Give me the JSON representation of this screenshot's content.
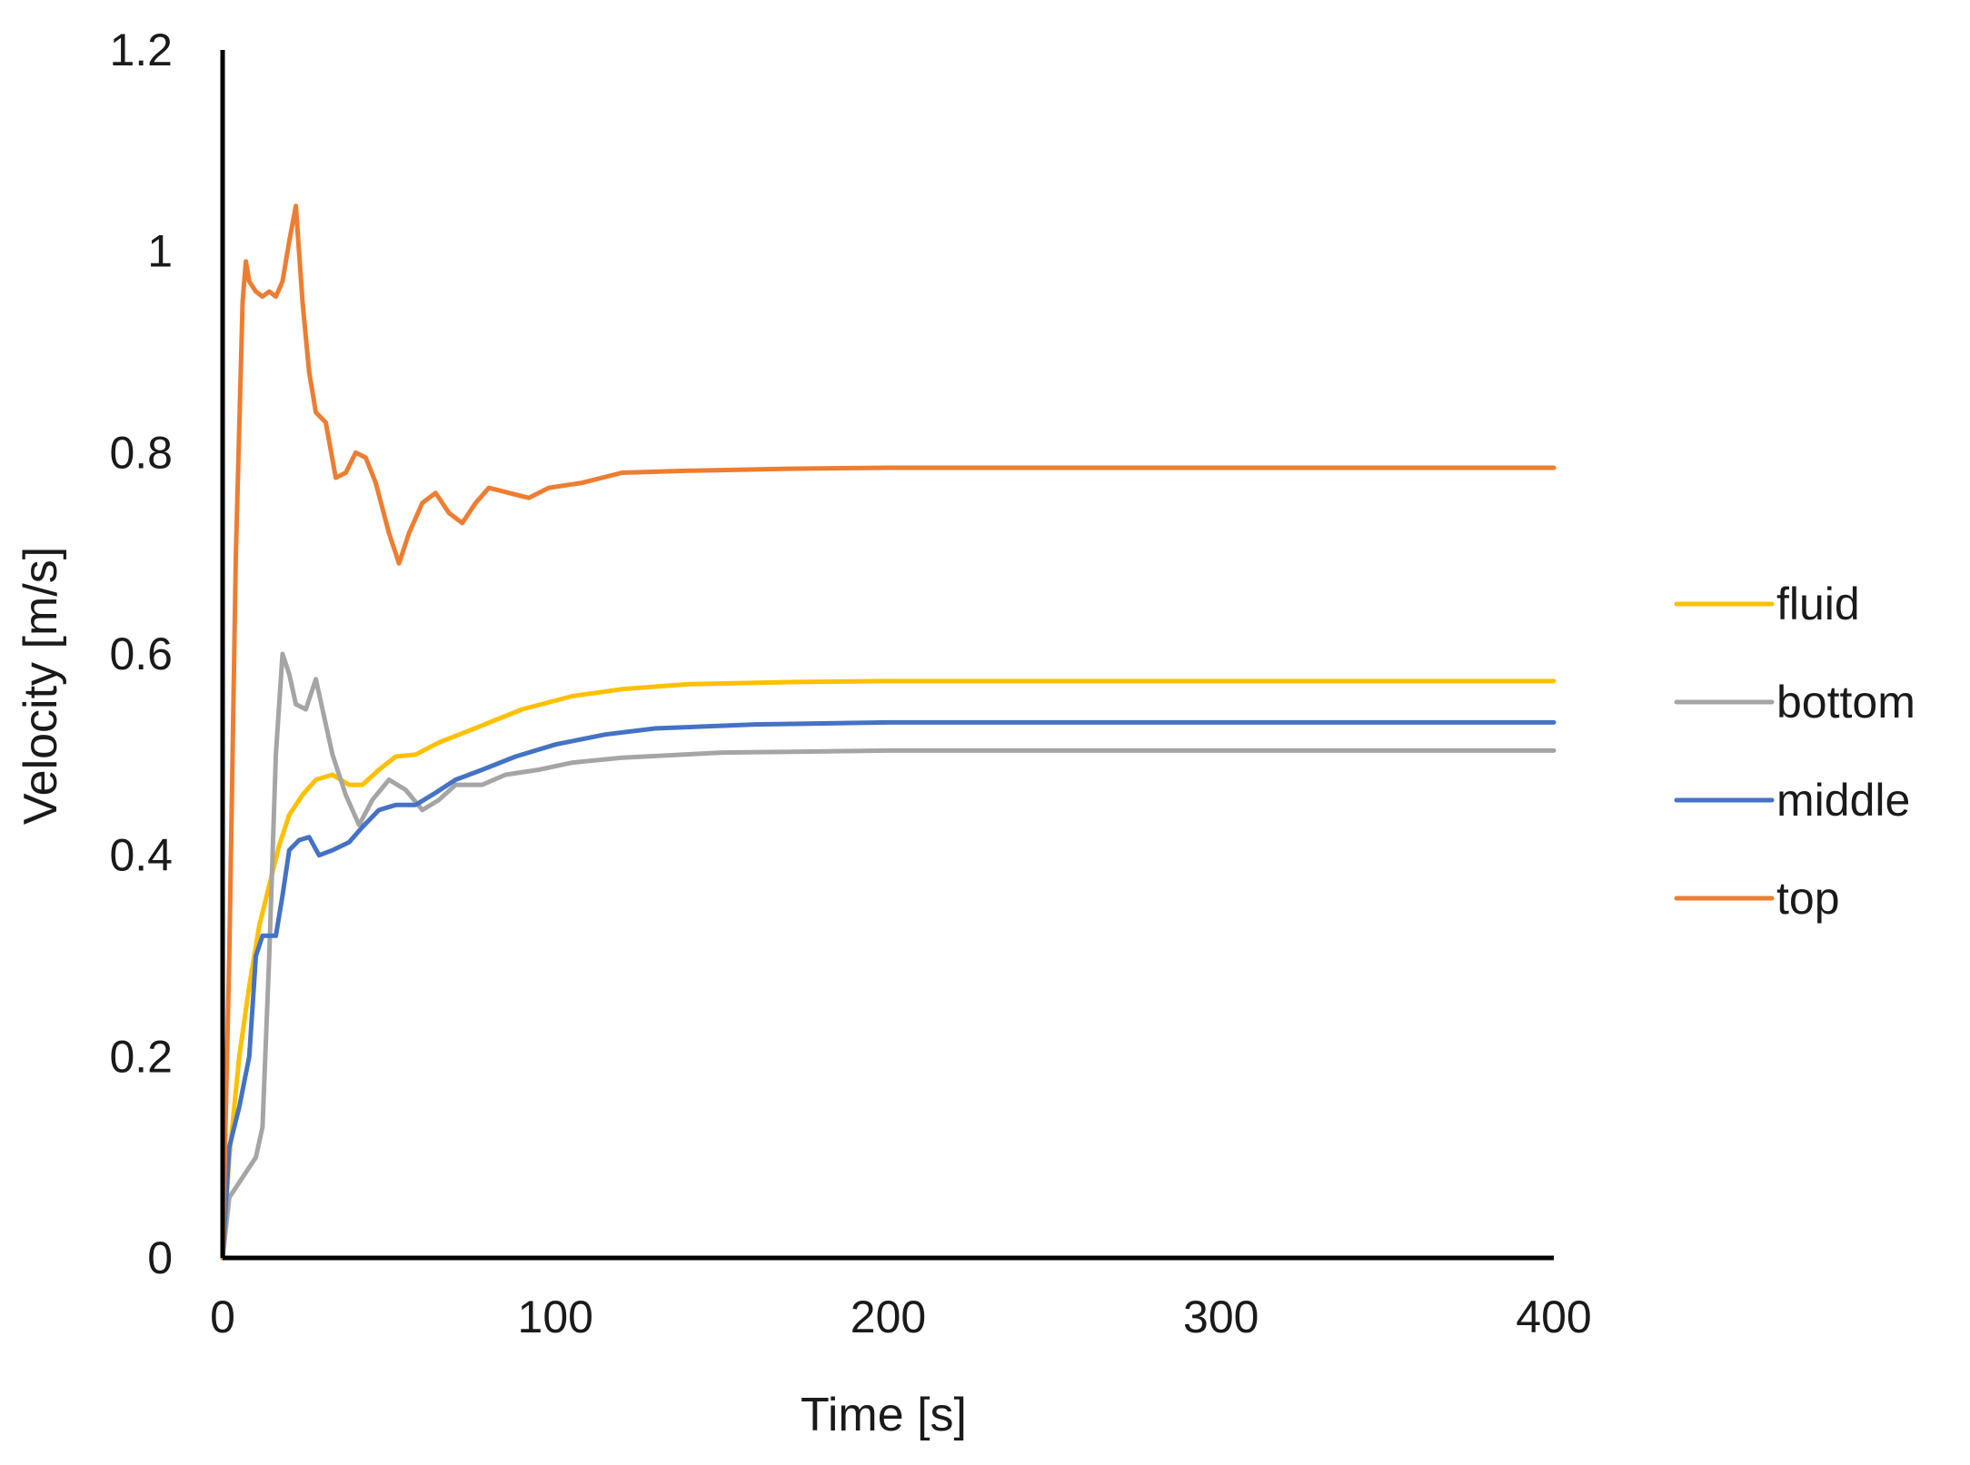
{
  "chart_data": {
    "type": "line",
    "title": "",
    "xlabel": "Time [s]",
    "ylabel": "Velocity [m/s]",
    "xlim": [
      0,
      400
    ],
    "ylim": [
      0,
      1.2
    ],
    "xticks": [
      0,
      100,
      200,
      300,
      400
    ],
    "yticks": [
      0,
      0.2,
      0.4,
      0.6,
      0.8,
      1,
      1.2
    ],
    "xtick_labels": [
      "0",
      "100",
      "200",
      "300",
      "400"
    ],
    "ytick_labels": [
      "0",
      "0.2",
      "0.4",
      "0.6",
      "0.8",
      "1",
      "1.2"
    ],
    "grid": false,
    "legend_position": "right",
    "series": [
      {
        "name": "fluid",
        "color": "#FFC000",
        "points": [
          [
            0,
            0
          ],
          [
            2,
            0.1
          ],
          [
            5,
            0.2
          ],
          [
            8,
            0.27
          ],
          [
            11,
            0.33
          ],
          [
            14,
            0.37
          ],
          [
            17,
            0.41
          ],
          [
            20,
            0.44
          ],
          [
            24,
            0.46
          ],
          [
            28,
            0.475
          ],
          [
            33,
            0.48
          ],
          [
            38,
            0.47
          ],
          [
            42,
            0.47
          ],
          [
            47,
            0.485
          ],
          [
            52,
            0.498
          ],
          [
            58,
            0.5
          ],
          [
            65,
            0.512
          ],
          [
            75,
            0.525
          ],
          [
            90,
            0.545
          ],
          [
            105,
            0.558
          ],
          [
            120,
            0.565
          ],
          [
            140,
            0.57
          ],
          [
            170,
            0.572
          ],
          [
            200,
            0.573
          ],
          [
            250,
            0.573
          ],
          [
            300,
            0.573
          ],
          [
            350,
            0.573
          ],
          [
            400,
            0.573
          ]
        ]
      },
      {
        "name": "bottom",
        "color": "#A5A5A5",
        "points": [
          [
            0,
            0
          ],
          [
            2,
            0.06
          ],
          [
            5,
            0.075
          ],
          [
            8,
            0.09
          ],
          [
            10,
            0.1
          ],
          [
            12,
            0.13
          ],
          [
            14,
            0.3
          ],
          [
            16,
            0.5
          ],
          [
            18,
            0.6
          ],
          [
            20,
            0.58
          ],
          [
            22,
            0.55
          ],
          [
            25,
            0.545
          ],
          [
            28,
            0.575
          ],
          [
            30,
            0.545
          ],
          [
            33,
            0.5
          ],
          [
            37,
            0.46
          ],
          [
            41,
            0.43
          ],
          [
            45,
            0.455
          ],
          [
            50,
            0.475
          ],
          [
            55,
            0.465
          ],
          [
            60,
            0.445
          ],
          [
            65,
            0.455
          ],
          [
            70,
            0.47
          ],
          [
            78,
            0.47
          ],
          [
            85,
            0.48
          ],
          [
            95,
            0.485
          ],
          [
            105,
            0.492
          ],
          [
            120,
            0.497
          ],
          [
            150,
            0.502
          ],
          [
            200,
            0.504
          ],
          [
            250,
            0.504
          ],
          [
            300,
            0.504
          ],
          [
            350,
            0.504
          ],
          [
            400,
            0.504
          ]
        ]
      },
      {
        "name": "middle",
        "color": "#4472C4",
        "points": [
          [
            0,
            0
          ],
          [
            2,
            0.11
          ],
          [
            5,
            0.15
          ],
          [
            8,
            0.2
          ],
          [
            10,
            0.3
          ],
          [
            12,
            0.32
          ],
          [
            14,
            0.32
          ],
          [
            16,
            0.32
          ],
          [
            18,
            0.36
          ],
          [
            20,
            0.405
          ],
          [
            23,
            0.415
          ],
          [
            26,
            0.418
          ],
          [
            29,
            0.4
          ],
          [
            33,
            0.405
          ],
          [
            38,
            0.413
          ],
          [
            42,
            0.428
          ],
          [
            47,
            0.445
          ],
          [
            52,
            0.45
          ],
          [
            58,
            0.45
          ],
          [
            64,
            0.462
          ],
          [
            70,
            0.475
          ],
          [
            78,
            0.485
          ],
          [
            88,
            0.498
          ],
          [
            100,
            0.51
          ],
          [
            115,
            0.52
          ],
          [
            130,
            0.526
          ],
          [
            160,
            0.53
          ],
          [
            200,
            0.532
          ],
          [
            250,
            0.532
          ],
          [
            300,
            0.532
          ],
          [
            350,
            0.532
          ],
          [
            400,
            0.532
          ]
        ]
      },
      {
        "name": "top",
        "color": "#ED7D31",
        "points": [
          [
            0,
            0
          ],
          [
            2,
            0.3
          ],
          [
            4,
            0.7
          ],
          [
            6,
            0.95
          ],
          [
            7,
            0.99
          ],
          [
            8,
            0.97
          ],
          [
            10,
            0.96
          ],
          [
            12,
            0.955
          ],
          [
            14,
            0.96
          ],
          [
            16,
            0.955
          ],
          [
            18,
            0.97
          ],
          [
            20,
            1.01
          ],
          [
            22,
            1.045
          ],
          [
            24,
            0.95
          ],
          [
            26,
            0.88
          ],
          [
            28,
            0.84
          ],
          [
            31,
            0.83
          ],
          [
            34,
            0.775
          ],
          [
            37,
            0.78
          ],
          [
            40,
            0.8
          ],
          [
            43,
            0.795
          ],
          [
            46,
            0.77
          ],
          [
            50,
            0.72
          ],
          [
            53,
            0.69
          ],
          [
            56,
            0.72
          ],
          [
            60,
            0.75
          ],
          [
            64,
            0.76
          ],
          [
            68,
            0.74
          ],
          [
            72,
            0.73
          ],
          [
            76,
            0.75
          ],
          [
            80,
            0.765
          ],
          [
            86,
            0.76
          ],
          [
            92,
            0.755
          ],
          [
            98,
            0.765
          ],
          [
            108,
            0.77
          ],
          [
            120,
            0.78
          ],
          [
            140,
            0.782
          ],
          [
            170,
            0.784
          ],
          [
            200,
            0.785
          ],
          [
            250,
            0.785
          ],
          [
            300,
            0.785
          ],
          [
            350,
            0.785
          ],
          [
            400,
            0.785
          ]
        ]
      }
    ]
  }
}
